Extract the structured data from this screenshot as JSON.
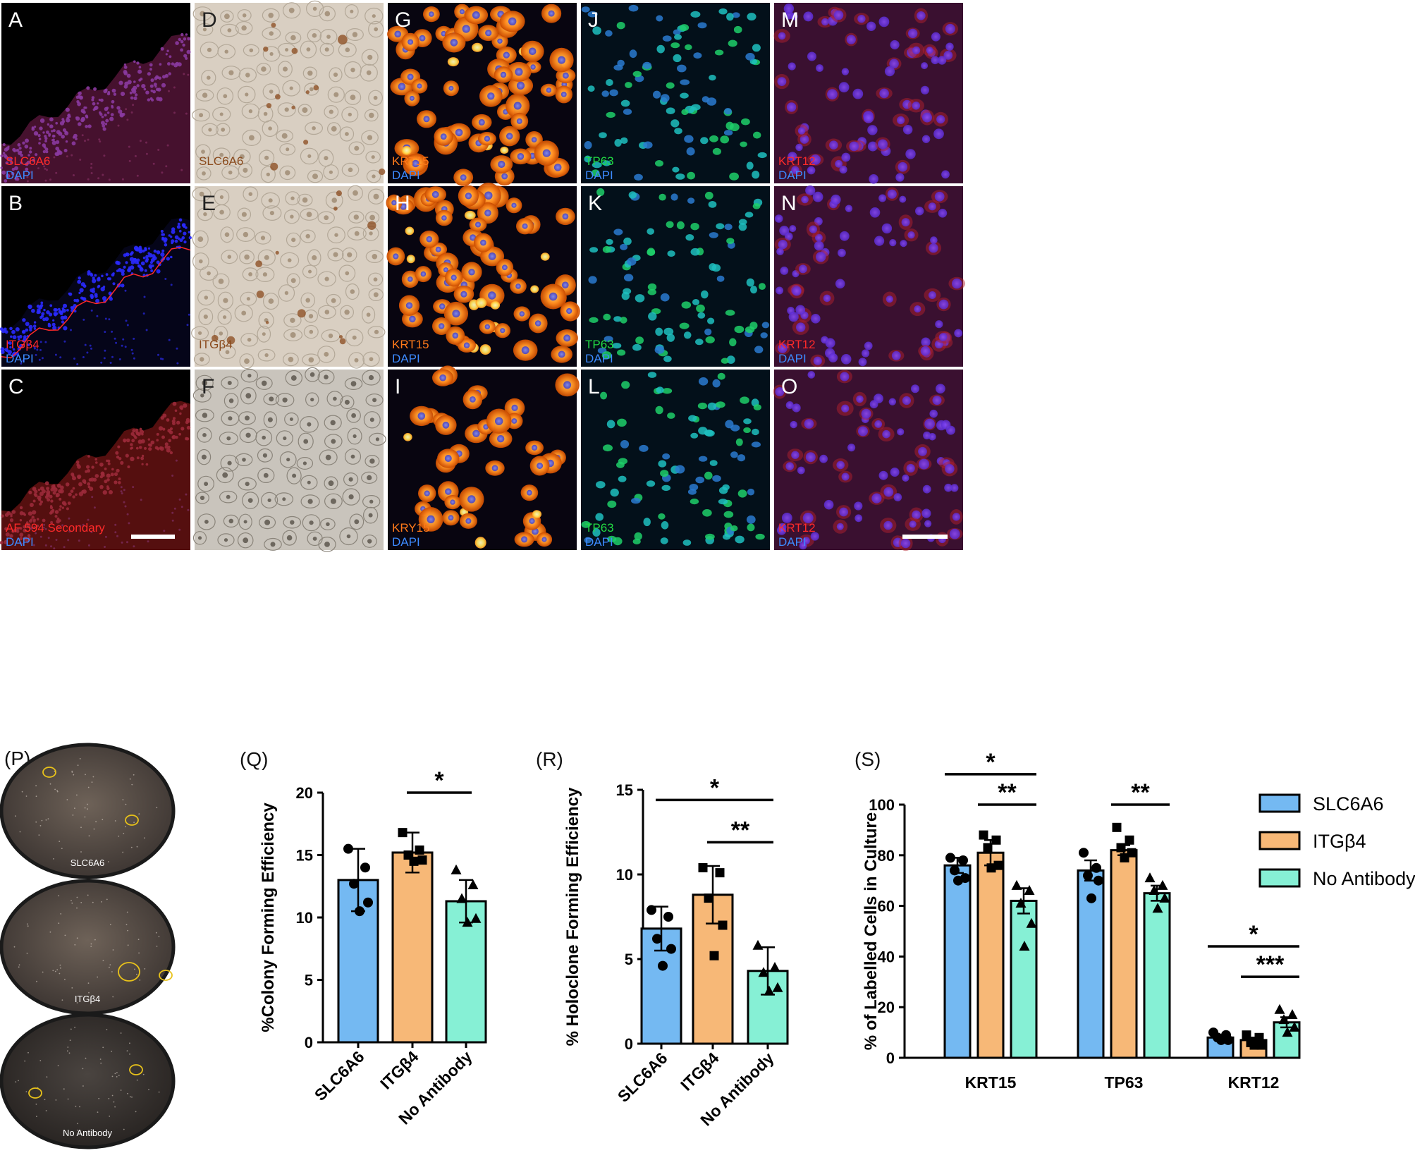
{
  "micrograph_panels": [
    {
      "letter": "A",
      "stain": "SLC6A6",
      "counter": "DAPI",
      "style": "tissue-red",
      "stain_color": "#ff2a2a",
      "counter_color": "#3d8bff",
      "letter_color": "#ffffff"
    },
    {
      "letter": "D",
      "stain": "SLC6A6",
      "counter": "",
      "style": "brightfield-dab",
      "stain_color": "#8a4a1c",
      "counter_color": "#8a4a1c",
      "letter_color": "#222222"
    },
    {
      "letter": "G",
      "stain": "KRT15",
      "counter": "DAPI",
      "style": "orange-cells",
      "stain_color": "#ff7a1a",
      "counter_color": "#3d8bff",
      "letter_color": "#ffffff"
    },
    {
      "letter": "J",
      "stain": "TP63",
      "counter": "DAPI",
      "style": "green-nuclei",
      "stain_color": "#22dd44",
      "counter_color": "#3d8bff",
      "letter_color": "#ffffff"
    },
    {
      "letter": "M",
      "stain": "KRT12",
      "counter": "DAPI",
      "style": "red-cells",
      "stain_color": "#ff2a2a",
      "counter_color": "#3d8bff",
      "letter_color": "#ffffff"
    },
    {
      "letter": "B",
      "stain": "ITGβ4",
      "counter": "DAPI",
      "style": "tissue-blue",
      "stain_color": "#ff2a2a",
      "counter_color": "#3d8bff",
      "letter_color": "#ffffff"
    },
    {
      "letter": "E",
      "stain": "ITGβ4",
      "counter": "",
      "style": "brightfield-dab",
      "stain_color": "#8a4a1c",
      "counter_color": "#8a4a1c",
      "letter_color": "#222222"
    },
    {
      "letter": "H",
      "stain": "KRT15",
      "counter": "DAPI",
      "style": "orange-cells",
      "stain_color": "#ff7a1a",
      "counter_color": "#3d8bff",
      "letter_color": "#ffffff"
    },
    {
      "letter": "K",
      "stain": "TP63",
      "counter": "DAPI",
      "style": "green-nuclei",
      "stain_color": "#22dd44",
      "counter_color": "#3d8bff",
      "letter_color": "#ffffff"
    },
    {
      "letter": "N",
      "stain": "KRT12",
      "counter": "DAPI",
      "style": "red-cells",
      "stain_color": "#ff2a2a",
      "counter_color": "#3d8bff",
      "letter_color": "#ffffff"
    },
    {
      "letter": "C",
      "stain": "AF 594 Secondary",
      "counter": "DAPI",
      "style": "tissue-red-dark",
      "stain_color": "#ff2a2a",
      "counter_color": "#3d8bff",
      "letter_color": "#ffffff"
    },
    {
      "letter": "F",
      "stain": "",
      "counter": "",
      "style": "brightfield-phase",
      "stain_color": "#8a4a1c",
      "counter_color": "#8a4a1c",
      "letter_color": "#222222"
    },
    {
      "letter": "I",
      "stain": "KRY15",
      "counter": "DAPI",
      "style": "orange-sparse",
      "stain_color": "#ff7a1a",
      "counter_color": "#3d8bff",
      "letter_color": "#ffffff"
    },
    {
      "letter": "L",
      "stain": "TP63",
      "counter": "DAPI",
      "style": "green-nuclei",
      "stain_color": "#22dd44",
      "counter_color": "#3d8bff",
      "letter_color": "#ffffff"
    },
    {
      "letter": "O",
      "stain": "KRT12",
      "counter": "DAPI",
      "style": "red-cells",
      "stain_color": "#ff2a2a",
      "counter_color": "#3d8bff",
      "letter_color": "#ffffff"
    }
  ],
  "dish_panel": {
    "letter": "(P)",
    "dishes": [
      {
        "label": "SLC6A6",
        "colonies": 2
      },
      {
        "label": "ITGβ4",
        "colonies": 2
      },
      {
        "label": "No Antibody",
        "colonies": 2
      }
    ],
    "colony_color": "#e8c21a"
  },
  "colors": {
    "slc6a6": "#74b9f2",
    "itgb4": "#f7b877",
    "no_antibody": "#86f0d5"
  },
  "chart_data": [
    {
      "letter": "(Q)",
      "type": "bar",
      "ylabel": "%Colony Forming Efficiency",
      "categories": [
        "SLC6A6",
        "ITGβ4",
        "No Antibody"
      ],
      "values": [
        13.0,
        15.2,
        11.3
      ],
      "errors": [
        2.5,
        1.6,
        1.7
      ],
      "points": [
        [
          15.5,
          14.0,
          12.7,
          11.2,
          10.5
        ],
        [
          16.8,
          15.4,
          15.0,
          14.6,
          14.5
        ],
        [
          13.8,
          12.6,
          11.5,
          9.9,
          9.6
        ]
      ],
      "ylim": [
        0,
        20
      ],
      "yticks": [
        "0",
        "5",
        "10",
        "15",
        "20"
      ],
      "significance": [
        {
          "from": 1,
          "to": 2,
          "label": "*",
          "y": 20.0
        }
      ]
    },
    {
      "letter": "(R)",
      "type": "bar",
      "ylabel": "% Holoclone Forming Efficiency",
      "categories": [
        "SLC6A6",
        "ITGβ4",
        "No Antibody"
      ],
      "values": [
        6.8,
        8.8,
        4.3
      ],
      "errors": [
        1.3,
        1.7,
        1.4
      ],
      "points": [
        [
          7.9,
          7.5,
          6.2,
          5.6,
          4.6
        ],
        [
          10.4,
          10.1,
          8.6,
          7.0,
          5.2
        ],
        [
          5.8,
          4.5,
          4.2,
          3.3,
          3.1
        ]
      ],
      "ylim": [
        0,
        15
      ],
      "yticks": [
        "0",
        "5",
        "10",
        "15"
      ],
      "significance": [
        {
          "from": 0,
          "to": 2,
          "label": "*",
          "y": 14.4
        },
        {
          "from": 1,
          "to": 2,
          "label": "**",
          "y": 11.9
        }
      ]
    },
    {
      "letter": "(S)",
      "type": "bar",
      "ylabel": "% of Labelled Cells in Culture",
      "groups": [
        "KRT15",
        "TP63",
        "KRT12"
      ],
      "series": [
        {
          "name": "SLC6A6",
          "values": [
            76,
            74,
            8
          ],
          "errors": [
            3,
            4,
            1
          ],
          "points": [
            [
              79,
              78,
              74,
              71,
              70
            ],
            [
              81,
              75,
              72,
              70,
              63
            ],
            [
              10,
              9,
              8,
              7,
              7
            ]
          ]
        },
        {
          "name": "ITGβ4",
          "values": [
            81,
            82,
            7
          ],
          "errors": [
            5,
            2,
            1
          ],
          "points": [
            [
              88,
              86,
              83,
              76,
              75
            ],
            [
              91,
              86,
              83,
              81,
              79
            ],
            [
              9,
              8,
              6,
              5,
              5
            ]
          ]
        },
        {
          "name": "No Antibody",
          "values": [
            62,
            65,
            14
          ],
          "errors": [
            5,
            3,
            2
          ],
          "points": [
            [
              68,
              66,
              61,
              53,
              44
            ],
            [
              71,
              68,
              66,
              63,
              59
            ],
            [
              19,
              17,
              15,
              12,
              10
            ]
          ]
        }
      ],
      "ylim": [
        0,
        100
      ],
      "yticks": [
        "0",
        "20",
        "40",
        "60",
        "80",
        "100"
      ],
      "significance": [
        {
          "group": 0,
          "from": 0,
          "to": 2,
          "label": "*",
          "y": 112
        },
        {
          "group": 0,
          "from": 1,
          "to": 2,
          "label": "**",
          "y": 100
        },
        {
          "group": 1,
          "from": 1,
          "to": 2,
          "label": "**",
          "y": 100
        },
        {
          "group": 2,
          "from": 0,
          "to": 2,
          "label": "*",
          "y": 44
        },
        {
          "group": 2,
          "from": 1,
          "to": 2,
          "label": "***",
          "y": 32
        }
      ],
      "legend": [
        "SLC6A6",
        "ITGβ4",
        "No Antibody"
      ],
      "legend_position": "right"
    }
  ]
}
